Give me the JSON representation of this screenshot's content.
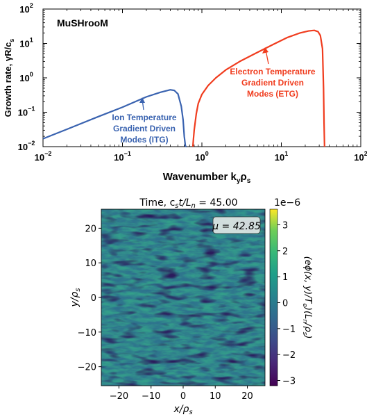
{
  "chart_data": [
    {
      "type": "line",
      "title": "",
      "in_plot_label": "MuSHrooM",
      "xlabel": "Wavenumber  k",
      "xlabel_sub1": "y",
      "xlabel_mid": "ρ",
      "xlabel_sub2": "s",
      "ylabel": "Growth rate, γR/c",
      "ylabel_sub": "s",
      "xscale": "log",
      "yscale": "log",
      "xlim": [
        0.01,
        100
      ],
      "ylim": [
        0.01,
        100
      ],
      "x_ticks": [
        {
          "value": 0.01,
          "base": "10",
          "exp": "−2"
        },
        {
          "value": 0.1,
          "base": "10",
          "exp": "−1"
        },
        {
          "value": 1,
          "base": "10",
          "exp": "0"
        },
        {
          "value": 10,
          "base": "10",
          "exp": "1"
        },
        {
          "value": 100,
          "base": "10",
          "exp": "2"
        }
      ],
      "y_ticks": [
        {
          "value": 0.01,
          "base": "10",
          "exp": "−2"
        },
        {
          "value": 0.1,
          "base": "10",
          "exp": "−1"
        },
        {
          "value": 1,
          "base": "10",
          "exp": "0"
        },
        {
          "value": 10,
          "base": "10",
          "exp": "1"
        },
        {
          "value": 100,
          "base": "10",
          "exp": "2"
        }
      ],
      "series": [
        {
          "color": "#3a63b0",
          "x": [
            0.01,
            0.02,
            0.05,
            0.1,
            0.2,
            0.3,
            0.4,
            0.45,
            0.5,
            0.55,
            0.58,
            0.6,
            0.62,
            0.63,
            0.64
          ],
          "y": [
            0.017,
            0.032,
            0.075,
            0.14,
            0.28,
            0.38,
            0.45,
            0.43,
            0.34,
            0.15,
            0.06,
            0.02,
            0.0105,
            0.0101,
            0.01
          ]
        },
        {
          "color": "#f03c1e",
          "x": [
            0.77,
            0.78,
            0.8,
            0.85,
            0.9,
            1.0,
            1.2,
            1.5,
            2,
            3,
            5,
            8,
            12,
            17,
            22,
            26,
            29,
            31,
            33,
            34,
            34.5,
            35
          ],
          "y": [
            0.01,
            0.015,
            0.03,
            0.09,
            0.18,
            0.33,
            0.6,
            1.0,
            1.7,
            3.0,
            5.5,
            9.5,
            15,
            20,
            23,
            24,
            22,
            17,
            7,
            0.5,
            0.05,
            0.01
          ]
        }
      ],
      "annotations": [
        {
          "lines": [
            "Ion Temperature",
            "Gradient Driven",
            "Modes (ITG)"
          ],
          "color": "#3a63b0",
          "arrow_to": [
            0.2,
            0.28
          ]
        },
        {
          "lines": [
            "Electron Temperature",
            "Gradient Driven",
            "Modes (ETG)"
          ],
          "color": "#f03c1e",
          "arrow_to": [
            6,
            10
          ]
        }
      ]
    },
    {
      "type": "heatmap",
      "title": "Time, c",
      "title_sub1": "s",
      "title_mid": "t/L",
      "title_sub2": "n",
      "title_value": " = 45.00",
      "in_plot_box": "μ = 42.85",
      "xlabel": "x/ρ",
      "xlabel_sub": "s",
      "ylabel": "y/ρ",
      "ylabel_sub": "s",
      "xlim": [
        -25.5,
        25.5
      ],
      "ylim": [
        -25.5,
        25.5
      ],
      "x_ticks": [
        "−20",
        "−10",
        "0",
        "10",
        "20"
      ],
      "x_tick_values": [
        -20,
        -10,
        0,
        10,
        20
      ],
      "y_ticks": [
        "−20",
        "−10",
        "0",
        "10",
        "20"
      ],
      "y_tick_values": [
        -20,
        -10,
        0,
        10,
        20
      ],
      "colormap": "viridis",
      "colorbar": {
        "label": "(eϕ(x, y)/T",
        "label_sub1": "e",
        "label_mid": ")(L",
        "label_sub2": "n",
        "label_end": "/ρ",
        "label_sub3": "s",
        "label_close": ")",
        "offset_text": "1e−6",
        "range": [
          -3.2,
          3.6
        ],
        "ticks": [
          -3,
          -2,
          -1,
          0,
          1,
          2,
          3
        ],
        "tick_labels": [
          "−3",
          "−2",
          "−1",
          "0",
          "1",
          "2",
          "3"
        ]
      },
      "field_description": "turbulent fluctuation field, stripes elongated along x"
    }
  ]
}
